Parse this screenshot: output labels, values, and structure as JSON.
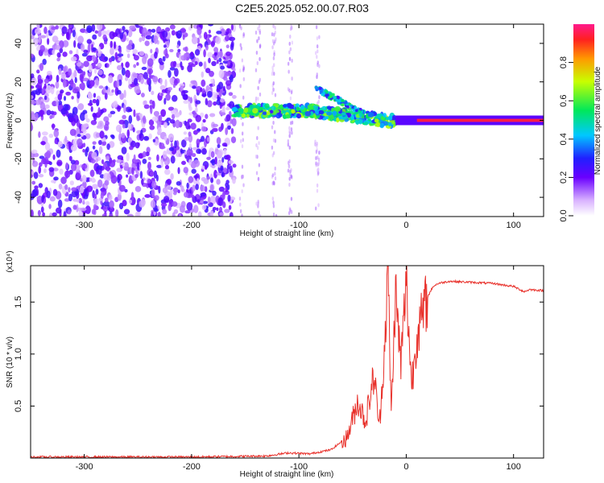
{
  "page": {
    "title": "C2E5.2025.052.00.07.R03"
  },
  "chart_data": [
    {
      "type": "heatmap",
      "panel": "spectrogram",
      "xlabel": "Height of straight line (km)",
      "ylabel": "Frequency (Hz)",
      "xlim": [
        -350,
        128
      ],
      "ylim": [
        -50,
        50
      ],
      "xticks": [
        "-300",
        "-200",
        "-100",
        "0",
        "100"
      ],
      "yticks": [
        "-40",
        "-20",
        "0",
        "20",
        "40"
      ],
      "colorbar": {
        "label": "Normalized spectral amplitude",
        "range": [
          0,
          1
        ],
        "ticks": [
          "0.0",
          "0.2",
          "0.4",
          "0.6",
          "0.8"
        ]
      },
      "features": [
        {
          "x_range": [
            -350,
            -160
          ],
          "freq_range": [
            -50,
            50
          ],
          "amplitude": "low"
        },
        {
          "x_range": [
            -160,
            -20
          ],
          "freq_center": 5,
          "amplitude": "medium"
        },
        {
          "x_range": [
            -85,
            -40
          ],
          "freq_center": 12,
          "amplitude": "medium"
        },
        {
          "x_range": [
            10,
            128
          ],
          "freq_center": 0,
          "amplitude": 1.0
        }
      ],
      "grid": false
    },
    {
      "type": "line",
      "panel": "snr",
      "xlabel": "Height of straight line (km)",
      "ylabel": "SNR (10 * v/v)",
      "yscale_label": "(x10⁴)",
      "xlim": [
        -350,
        128
      ],
      "ylim": [
        0,
        1.85
      ],
      "xticks": [
        "-300",
        "-200",
        "-100",
        "0",
        "100"
      ],
      "yticks": [
        "0.5",
        "1.0",
        "1.5"
      ],
      "series": [
        {
          "color": "#e8302a",
          "x": [
            -350,
            -200,
            -130,
            -110,
            -90,
            -70,
            -55,
            -45,
            -38,
            -30,
            -25,
            -20,
            -17,
            -14,
            -10,
            -5,
            0,
            5,
            10,
            15,
            20,
            25,
            30,
            40,
            60,
            80,
            100,
            110,
            115,
            128
          ],
          "y": [
            0.01,
            0.01,
            0.02,
            0.05,
            0.04,
            0.08,
            0.2,
            0.55,
            0.35,
            0.8,
            0.3,
            1.1,
            1.85,
            0.4,
            1.6,
            0.9,
            1.7,
            0.7,
            1.2,
            1.35,
            1.55,
            1.65,
            1.68,
            1.7,
            1.69,
            1.68,
            1.65,
            1.6,
            1.62,
            1.61
          ]
        }
      ],
      "grid": false
    }
  ]
}
